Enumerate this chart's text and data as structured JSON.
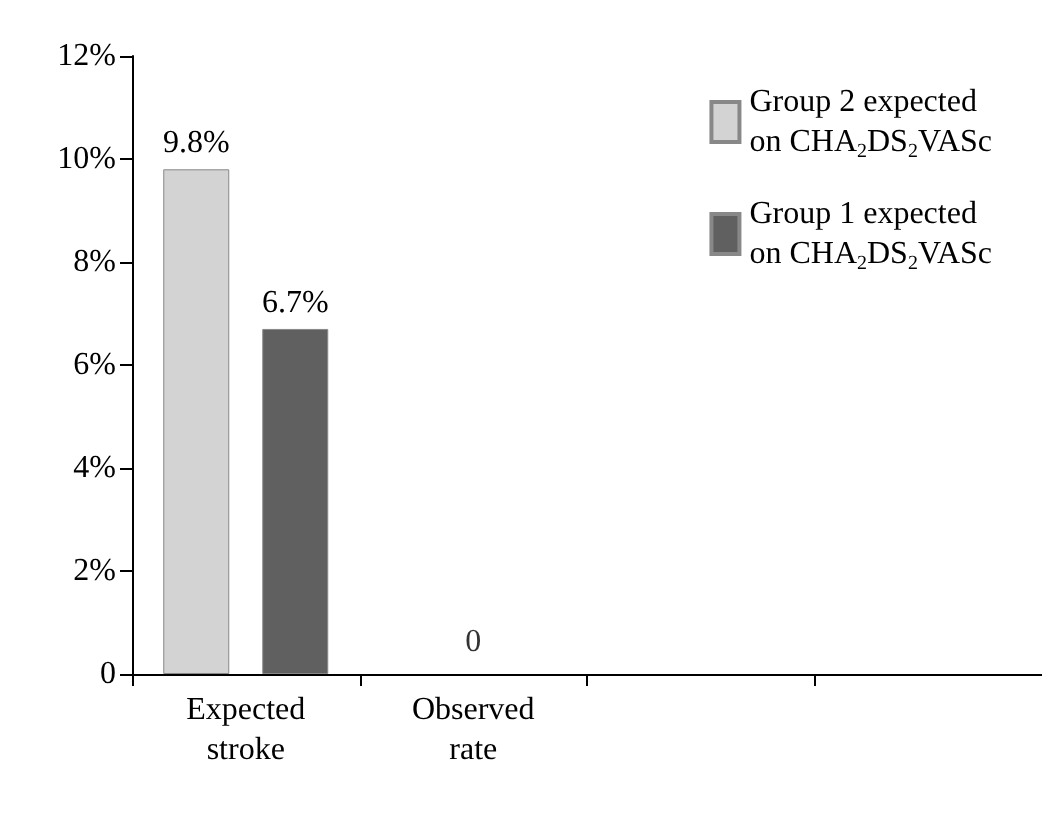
{
  "chart_data": {
    "type": "bar",
    "categories": [
      "Expected\nstroke",
      "Observed\nrate",
      null,
      null
    ],
    "series": [
      {
        "name": "Group 2 expected\non CHA$_{2}$DS$_{2}$VASc",
        "color": "#d3d3d3",
        "values": [
          9.8,
          null,
          null,
          null
        ],
        "value_labels": [
          "9.8%",
          null,
          null,
          null
        ]
      },
      {
        "name": "Group 1 expected\non CHA$_{2}$DS$_{2}$VASc",
        "color": "#606060",
        "values": [
          6.7,
          null,
          null,
          null
        ],
        "value_labels": [
          "6.7%",
          null,
          null,
          null
        ]
      }
    ],
    "annotations": [
      "0"
    ],
    "ylim": [
      0,
      12
    ],
    "yticks": [
      {
        "value": 0,
        "label": "0"
      },
      {
        "value": 2,
        "label": "2%"
      },
      {
        "value": 4,
        "label": "4%"
      },
      {
        "value": 6,
        "label": "6%"
      },
      {
        "value": 8,
        "label": "8%"
      },
      {
        "value": 10,
        "label": "10%"
      },
      {
        "value": 12,
        "label": "12%"
      }
    ],
    "grid": false,
    "legend": "top right"
  }
}
